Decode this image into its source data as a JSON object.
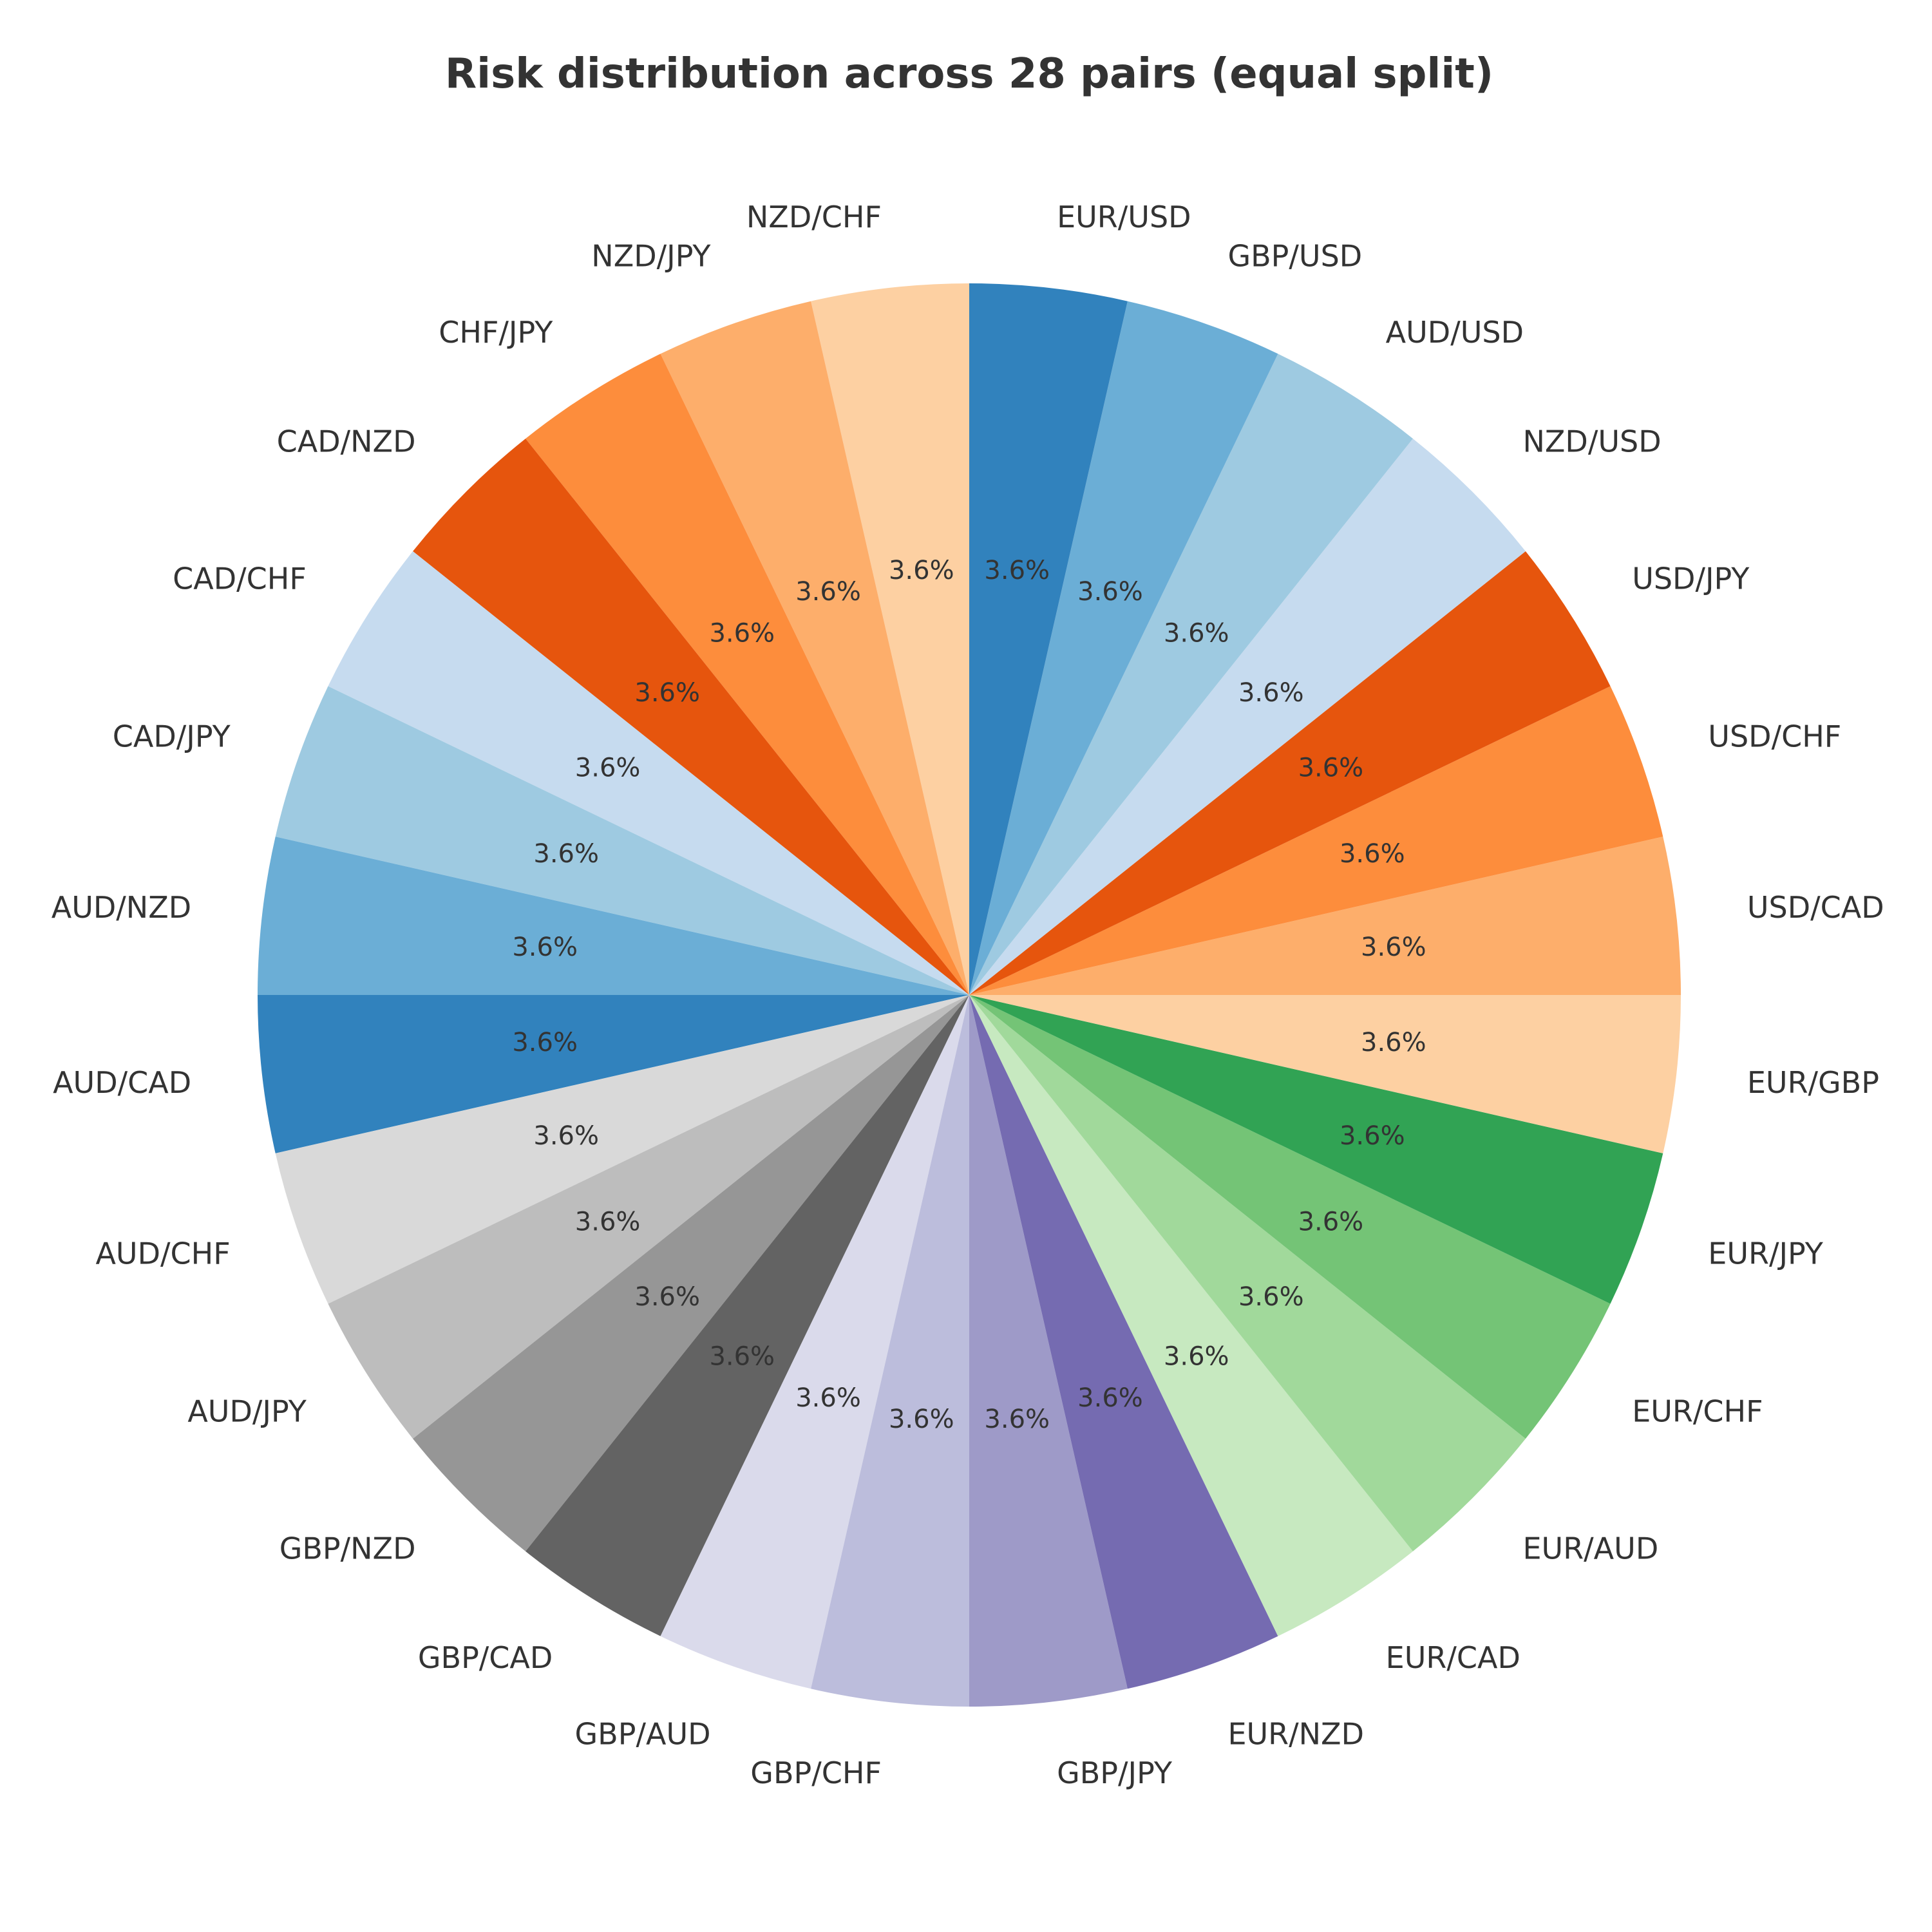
{
  "chart_data": {
    "type": "pie",
    "title": "Risk distribution across 28 pairs (equal split)",
    "start_angle_deg": 90,
    "direction": "counterclockwise",
    "slices": [
      {
        "label": "NZD/CHF",
        "value": 3.57,
        "pct_label": "3.6%",
        "color": "#fdd0a2"
      },
      {
        "label": "NZD/JPY",
        "value": 3.57,
        "pct_label": "3.6%",
        "color": "#fdae6b"
      },
      {
        "label": "CHF/JPY",
        "value": 3.57,
        "pct_label": "3.6%",
        "color": "#fd8d3c"
      },
      {
        "label": "CAD/NZD",
        "value": 3.57,
        "pct_label": "3.6%",
        "color": "#e6550d"
      },
      {
        "label": "CAD/CHF",
        "value": 3.57,
        "pct_label": "3.6%",
        "color": "#c6dbef"
      },
      {
        "label": "CAD/JPY",
        "value": 3.57,
        "pct_label": "3.6%",
        "color": "#9ecae1"
      },
      {
        "label": "AUD/NZD",
        "value": 3.57,
        "pct_label": "3.6%",
        "color": "#6baed6"
      },
      {
        "label": "AUD/CAD",
        "value": 3.57,
        "pct_label": "3.6%",
        "color": "#3182bd"
      },
      {
        "label": "AUD/CHF",
        "value": 3.57,
        "pct_label": "3.6%",
        "color": "#d9d9d9"
      },
      {
        "label": "AUD/JPY",
        "value": 3.57,
        "pct_label": "3.6%",
        "color": "#bdbdbd"
      },
      {
        "label": "GBP/NZD",
        "value": 3.57,
        "pct_label": "3.6%",
        "color": "#969696"
      },
      {
        "label": "GBP/CAD",
        "value": 3.57,
        "pct_label": "3.6%",
        "color": "#636363"
      },
      {
        "label": "GBP/AUD",
        "value": 3.57,
        "pct_label": "3.6%",
        "color": "#dadaeb"
      },
      {
        "label": "GBP/CHF",
        "value": 3.57,
        "pct_label": "3.6%",
        "color": "#bcbddc"
      },
      {
        "label": "GBP/JPY",
        "value": 3.57,
        "pct_label": "3.6%",
        "color": "#9e9ac8"
      },
      {
        "label": "EUR/NZD",
        "value": 3.57,
        "pct_label": "3.6%",
        "color": "#756bb1"
      },
      {
        "label": "EUR/CAD",
        "value": 3.57,
        "pct_label": "3.6%",
        "color": "#c7e9c0"
      },
      {
        "label": "EUR/AUD",
        "value": 3.57,
        "pct_label": "3.6%",
        "color": "#a1d99b"
      },
      {
        "label": "EUR/CHF",
        "value": 3.57,
        "pct_label": "3.6%",
        "color": "#74c476"
      },
      {
        "label": "EUR/JPY",
        "value": 3.57,
        "pct_label": "3.6%",
        "color": "#31a354"
      },
      {
        "label": "EUR/GBP",
        "value": 3.57,
        "pct_label": "3.6%",
        "color": "#fdd0a2"
      },
      {
        "label": "USD/CAD",
        "value": 3.57,
        "pct_label": "3.6%",
        "color": "#fdae6b"
      },
      {
        "label": "USD/CHF",
        "value": 3.57,
        "pct_label": "3.6%",
        "color": "#fd8d3c"
      },
      {
        "label": "USD/JPY",
        "value": 3.57,
        "pct_label": "3.6%",
        "color": "#e6550d"
      },
      {
        "label": "NZD/USD",
        "value": 3.57,
        "pct_label": "3.6%",
        "color": "#c6dbef"
      },
      {
        "label": "AUD/USD",
        "value": 3.57,
        "pct_label": "3.6%",
        "color": "#9ecae1"
      },
      {
        "label": "GBP/USD",
        "value": 3.57,
        "pct_label": "3.6%",
        "color": "#6baed6"
      },
      {
        "label": "EUR/USD",
        "value": 3.57,
        "pct_label": "3.6%",
        "color": "#3182bd"
      }
    ]
  }
}
